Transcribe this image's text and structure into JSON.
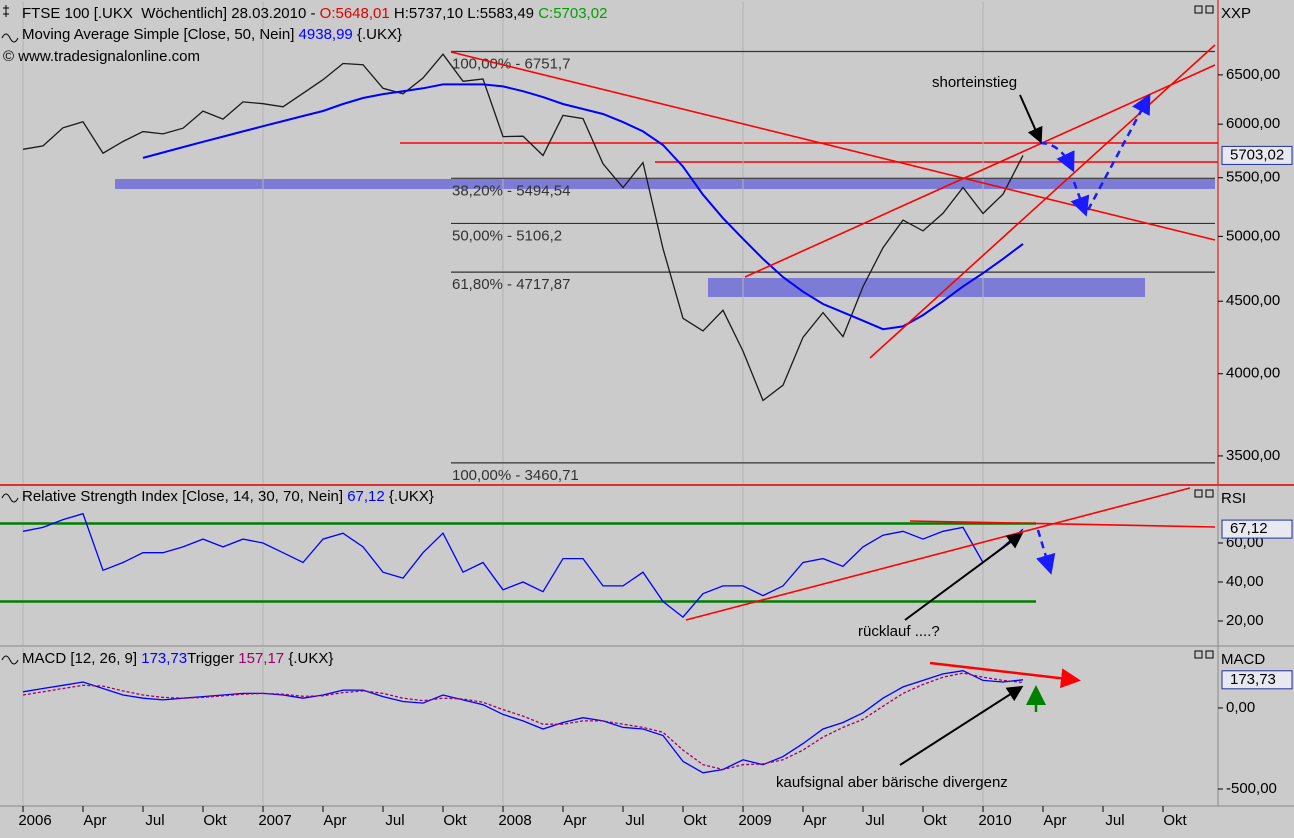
{
  "chart_data": [
    {
      "type": "line",
      "log_scale": true,
      "axis_label": "XXP",
      "credit": "© www.tradesignalonline.com",
      "x": [
        "2006-01",
        "2006-02",
        "2006-03",
        "2006-04",
        "2006-05",
        "2006-06",
        "2006-07",
        "2006-08",
        "2006-09",
        "2006-10",
        "2006-11",
        "2006-12",
        "2007-01",
        "2007-02",
        "2007-03",
        "2007-04",
        "2007-05",
        "2007-06",
        "2007-07",
        "2007-08",
        "2007-09",
        "2007-10",
        "2007-11",
        "2007-12",
        "2008-01",
        "2008-02",
        "2008-03",
        "2008-04",
        "2008-05",
        "2008-06",
        "2008-07",
        "2008-08",
        "2008-09",
        "2008-10",
        "2008-11",
        "2008-12",
        "2009-01",
        "2009-02",
        "2009-03",
        "2009-04",
        "2009-05",
        "2009-06",
        "2009-07",
        "2009-08",
        "2009-09",
        "2009-10",
        "2009-11",
        "2009-12",
        "2010-01",
        "2010-02",
        "2010-03"
      ],
      "series": [
        {
          "name": "FTSE 100",
          "color": "#1a1a1a",
          "header_parts": [
            {
              "text": " [.UKX  Wöchentlich] 28.03.2010 - ",
              "color": "#000000"
            },
            {
              "text": "O:5648,01",
              "color": "#e00000"
            },
            {
              "text": " H:5737,10 L:5583,49 ",
              "color": "#000000"
            },
            {
              "text": "C:5703,02",
              "color": "#00a000"
            }
          ],
          "values": [
            5760,
            5792,
            5965,
            6023,
            5723,
            5833,
            5928,
            5906,
            5961,
            6129,
            6049,
            6221,
            6203,
            6172,
            6308,
            6449,
            6621,
            6608,
            6360,
            6303,
            6467,
            6722,
            6433,
            6457,
            5880,
            5884,
            5702,
            6087,
            6054,
            5626,
            5412,
            5637,
            4902,
            4377,
            4288,
            4434,
            4150,
            3830,
            3926,
            4244,
            4418,
            4249,
            4608,
            4909,
            5134,
            5045,
            5191,
            5413,
            5189,
            5355,
            5703.02
          ]
        },
        {
          "name": "Moving Average Simple",
          "color": "#0000ff",
          "header_parts": [
            {
              "text": " [Close, 50, Nein] ",
              "color": "#000000"
            },
            {
              "text": "4938,99",
              "color": "#0000ff"
            },
            {
              "text": " {.UKX}",
              "color": "#000000"
            }
          ],
          "values": [
            null,
            null,
            null,
            null,
            null,
            null,
            5680,
            5730,
            5780,
            5830,
            5880,
            5930,
            5980,
            6030,
            6080,
            6130,
            6200,
            6260,
            6300,
            6330,
            6360,
            6400,
            6400,
            6400,
            6380,
            6330,
            6270,
            6200,
            6150,
            6100,
            6020,
            5930,
            5800,
            5600,
            5350,
            5150,
            4980,
            4820,
            4680,
            4570,
            4480,
            4420,
            4360,
            4300,
            4320,
            4400,
            4500,
            4610,
            4710,
            4820,
            4938.99
          ]
        }
      ],
      "last_value_label": "5703,02",
      "ylim": [
        3344,
        7317
      ],
      "yticks": [
        {
          "value": 3500,
          "label": "3500,00"
        },
        {
          "value": 4000,
          "label": "4000,00"
        },
        {
          "value": 4500,
          "label": "4500,00"
        },
        {
          "value": 5000,
          "label": "5000,00"
        },
        {
          "value": 5500,
          "label": "5500,00"
        },
        {
          "value": 6000,
          "label": "6000,00"
        },
        {
          "value": 6500,
          "label": "6500,00"
        }
      ],
      "fib_levels": [
        {
          "value": 6751.7,
          "label": "100,00% - 6751,7"
        },
        {
          "value": 5494.54,
          "label": "38,20% - 5494,54"
        },
        {
          "value": 5106.2,
          "label": "50,00% - 5106,2"
        },
        {
          "value": 4717.87,
          "label": "61,80% - 4717,87"
        },
        {
          "value": 3460.71,
          "label": "100,00% - 3460,71"
        }
      ],
      "annotations": [
        "shorteinstieg"
      ]
    },
    {
      "type": "line",
      "axis_label": "RSI",
      "x": [
        "2006-01",
        "2006-02",
        "2006-03",
        "2006-04",
        "2006-05",
        "2006-06",
        "2006-07",
        "2006-08",
        "2006-09",
        "2006-10",
        "2006-11",
        "2006-12",
        "2007-01",
        "2007-02",
        "2007-03",
        "2007-04",
        "2007-05",
        "2007-06",
        "2007-07",
        "2007-08",
        "2007-09",
        "2007-10",
        "2007-11",
        "2007-12",
        "2008-01",
        "2008-02",
        "2008-03",
        "2008-04",
        "2008-05",
        "2008-06",
        "2008-07",
        "2008-08",
        "2008-09",
        "2008-10",
        "2008-11",
        "2008-12",
        "2009-01",
        "2009-02",
        "2009-03",
        "2009-04",
        "2009-05",
        "2009-06",
        "2009-07",
        "2009-08",
        "2009-09",
        "2009-10",
        "2009-11",
        "2009-12",
        "2010-01",
        "2010-02",
        "2010-03"
      ],
      "series": [
        {
          "name": "Relative Strength Index",
          "color": "#0000ff",
          "header_parts": [
            {
              "text": " [Close, 14, 30, 70, Nein] ",
              "color": "#000000"
            },
            {
              "text": "67,12",
              "color": "#0000ff"
            },
            {
              "text": " {.UKX}",
              "color": "#000000"
            }
          ],
          "values": [
            66,
            68,
            72,
            75,
            46,
            50,
            55,
            55,
            58,
            62,
            58,
            62,
            60,
            55,
            50,
            62,
            65,
            58,
            45,
            42,
            55,
            65,
            45,
            50,
            36,
            40,
            35,
            52,
            52,
            38,
            38,
            45,
            30,
            22,
            34,
            38,
            38,
            33,
            38,
            50,
            52,
            48,
            58,
            64,
            66,
            62,
            66,
            68,
            50,
            58,
            67.12
          ]
        }
      ],
      "last_value_label": "67,12",
      "levels": [
        70,
        30
      ],
      "level_color": "#008000",
      "ylim": [
        7.7,
        88.7
      ],
      "yticks": [
        {
          "value": 20,
          "label": "20,00"
        },
        {
          "value": 40,
          "label": "40,00"
        },
        {
          "value": 60,
          "label": "60,00"
        }
      ],
      "annotations": [
        "rücklauf ....?"
      ]
    },
    {
      "type": "line",
      "axis_label": "MACD",
      "x": [
        "2006-01",
        "2006-02",
        "2006-03",
        "2006-04",
        "2006-05",
        "2006-06",
        "2006-07",
        "2006-08",
        "2006-09",
        "2006-10",
        "2006-11",
        "2006-12",
        "2007-01",
        "2007-02",
        "2007-03",
        "2007-04",
        "2007-05",
        "2007-06",
        "2007-07",
        "2007-08",
        "2007-09",
        "2007-10",
        "2007-11",
        "2007-12",
        "2008-01",
        "2008-02",
        "2008-03",
        "2008-04",
        "2008-05",
        "2008-06",
        "2008-07",
        "2008-08",
        "2008-09",
        "2008-10",
        "2008-11",
        "2008-12",
        "2009-01",
        "2009-02",
        "2009-03",
        "2009-04",
        "2009-05",
        "2009-06",
        "2009-07",
        "2009-08",
        "2009-09",
        "2009-10",
        "2009-11",
        "2009-12",
        "2010-01",
        "2010-02",
        "2010-03"
      ],
      "series": [
        {
          "name": "MACD",
          "color": "#0000ff",
          "header_parts": [
            {
              "text": " [12, 26, 9] ",
              "color": "#000000"
            },
            {
              "text": "173,73",
              "color": "#0000ff"
            }
          ],
          "values": [
            100,
            120,
            140,
            160,
            120,
            80,
            60,
            50,
            60,
            70,
            80,
            90,
            90,
            80,
            60,
            80,
            110,
            110,
            70,
            40,
            30,
            80,
            50,
            20,
            -40,
            -80,
            -130,
            -90,
            -60,
            -80,
            -120,
            -130,
            -170,
            -330,
            -400,
            -380,
            -320,
            -350,
            -300,
            -220,
            -130,
            -90,
            -30,
            60,
            130,
            170,
            210,
            230,
            170,
            160,
            173.73
          ]
        },
        {
          "name": "Trigger",
          "color": "#a0006a",
          "header_parts": [
            {
              "text": " ",
              "color": "#000000"
            },
            {
              "text": "157,17",
              "color": "#a0006a"
            },
            {
              "text": " {.UKX}",
              "color": "#000000"
            }
          ],
          "values": [
            80,
            100,
            120,
            140,
            135,
            105,
            80,
            65,
            60,
            65,
            75,
            85,
            90,
            85,
            72,
            75,
            95,
            105,
            90,
            60,
            45,
            60,
            55,
            35,
            -10,
            -50,
            -100,
            -100,
            -80,
            -80,
            -100,
            -120,
            -150,
            -260,
            -350,
            -380,
            -350,
            -345,
            -320,
            -260,
            -180,
            -120,
            -70,
            10,
            90,
            145,
            190,
            215,
            190,
            170,
            157.17
          ]
        }
      ],
      "last_value_label": "173,73",
      "ylim": [
        -605,
        370
      ],
      "yticks": [
        {
          "value": -500,
          "label": "-500,00"
        },
        {
          "value": 0,
          "label": "0,00"
        }
      ],
      "xlim": [
        "2005-12",
        "2010-12"
      ],
      "xticks": [
        {
          "value": "2006-01",
          "label": "2006"
        },
        {
          "value": "2006-04",
          "label": "Apr"
        },
        {
          "value": "2006-07",
          "label": "Jul"
        },
        {
          "value": "2006-10",
          "label": "Okt"
        },
        {
          "value": "2007-01",
          "label": "2007"
        },
        {
          "value": "2007-04",
          "label": "Apr"
        },
        {
          "value": "2007-07",
          "label": "Jul"
        },
        {
          "value": "2007-10",
          "label": "Okt"
        },
        {
          "value": "2008-01",
          "label": "2008"
        },
        {
          "value": "2008-04",
          "label": "Apr"
        },
        {
          "value": "2008-07",
          "label": "Jul"
        },
        {
          "value": "2008-10",
          "label": "Okt"
        },
        {
          "value": "2009-01",
          "label": "2009"
        },
        {
          "value": "2009-04",
          "label": "Apr"
        },
        {
          "value": "2009-07",
          "label": "Jul"
        },
        {
          "value": "2009-10",
          "label": "Okt"
        },
        {
          "value": "2010-01",
          "label": "2010"
        },
        {
          "value": "2010-04",
          "label": "Apr"
        },
        {
          "value": "2010-07",
          "label": "Jul"
        },
        {
          "value": "2010-10",
          "label": "Okt"
        }
      ],
      "grid": true,
      "annotations": [
        "kaufsignal aber bärische divergenz"
      ]
    }
  ]
}
